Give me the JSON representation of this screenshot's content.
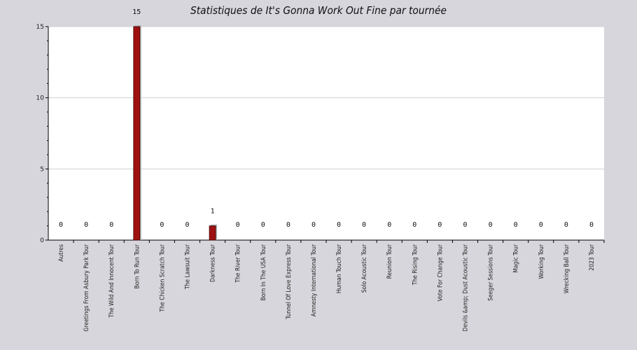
{
  "chart_data": {
    "type": "bar",
    "title": "Statistiques de It's Gonna Work Out Fine par tournée",
    "xlabel": "",
    "ylabel": "",
    "ylim": [
      0,
      15
    ],
    "yticks": [
      0,
      5,
      10,
      15
    ],
    "grid": true,
    "categories": [
      "Autres",
      "Greetings From Asbury Park Tour",
      "The Wild And Innocent Tour",
      "Born To Run Tour",
      "The Chicken Scratch Tour",
      "The Lawsuit Tour",
      "Darkness Tour",
      "The River Tour",
      "Born In The USA Tour",
      "Tunnel Of Love Express Tour",
      "Amnesty International Tour",
      "Human Touch Tour",
      "Solo Acoustic Tour",
      "Reunion Tour",
      "The Rising Tour",
      "Vote For Change Tour",
      "Devils &amp; Dust Acoustic Tour",
      "Seeger Sessions Tour",
      "Magic Tour",
      "Working Tour",
      "Wrecking Ball Tour",
      "2023 Tour"
    ],
    "values": [
      0,
      0,
      0,
      15,
      0,
      0,
      1,
      0,
      0,
      0,
      0,
      0,
      0,
      0,
      0,
      0,
      0,
      0,
      0,
      0,
      0,
      0
    ],
    "bar_color": "#a01010",
    "shadow_color": "#b8b8b8"
  }
}
